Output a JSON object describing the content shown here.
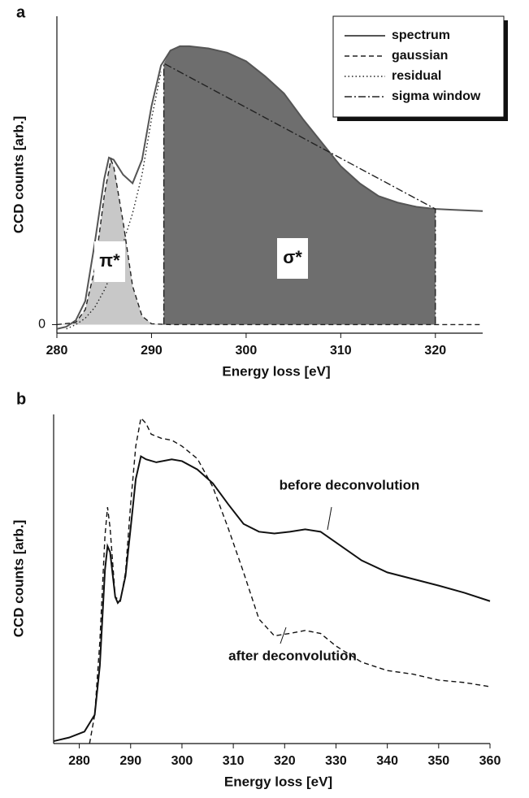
{
  "chart_data": [
    {
      "type": "line",
      "panel_label": "a",
      "xlabel": "Energy loss [eV]",
      "ylabel": "CCD counts [arb.]",
      "xlim": [
        280,
        325
      ],
      "xticks": [
        280,
        290,
        300,
        310,
        320
      ],
      "ylim": [
        -0.2,
        7.2
      ],
      "yticks": [
        0
      ],
      "legend": "upper right",
      "annotations": [
        "π*",
        "σ*"
      ],
      "series": [
        {
          "name": "spectrum",
          "color": "#555555",
          "linestyle": "solid",
          "x": [
            280,
            281,
            282,
            283,
            284,
            285,
            285.5,
            286,
            287,
            288,
            289,
            290,
            291,
            292,
            293,
            294,
            296,
            298,
            300,
            302,
            304,
            306,
            308,
            310,
            312,
            314,
            316,
            318,
            320,
            322,
            325
          ],
          "values": [
            -0.1,
            -0.05,
            0.1,
            0.55,
            1.9,
            3.4,
            3.9,
            3.85,
            3.5,
            3.3,
            3.85,
            5.1,
            6.05,
            6.4,
            6.5,
            6.5,
            6.45,
            6.35,
            6.15,
            5.8,
            5.4,
            4.8,
            4.25,
            3.7,
            3.3,
            3.0,
            2.85,
            2.75,
            2.7,
            2.68,
            2.65
          ]
        },
        {
          "name": "gaussian",
          "color": "#222222",
          "linestyle": "dashed",
          "fill": "#c8c8c8",
          "x": [
            280,
            282,
            283,
            284,
            285,
            285.7,
            286,
            287,
            288,
            289,
            290,
            292,
            325
          ],
          "values": [
            0,
            0.05,
            0.35,
            1.3,
            3.0,
            3.85,
            3.7,
            2.4,
            0.9,
            0.2,
            0.02,
            0,
            0
          ]
        },
        {
          "name": "residual",
          "color": "#222222",
          "linestyle": "dotted",
          "x": [
            281,
            282,
            283,
            284,
            285,
            286,
            287,
            288,
            289,
            290,
            291
          ],
          "values": [
            -0.1,
            0,
            0.15,
            0.4,
            0.8,
            1.3,
            1.9,
            2.6,
            3.5,
            4.8,
            5.9
          ]
        },
        {
          "name": "sigma window",
          "color": "#222222",
          "linestyle": "dashdot",
          "fill": "#6e6e6e",
          "x": [
            291.3,
            291.3,
            320,
            320
          ],
          "values": [
            0,
            6.1,
            2.7,
            0
          ]
        }
      ]
    },
    {
      "type": "line",
      "panel_label": "b",
      "xlabel": "Energy loss [eV]",
      "ylabel": "CCD counts [arb.]",
      "xlim": [
        275,
        360
      ],
      "xticks": [
        280,
        290,
        300,
        310,
        320,
        330,
        340,
        350,
        360
      ],
      "ylim": [
        0,
        5.5
      ],
      "annotations": [
        "before deconvolution",
        "after deconvolution"
      ],
      "series": [
        {
          "name": "before deconvolution",
          "color": "#111111",
          "linestyle": "solid",
          "x": [
            275,
            278,
            281,
            283,
            284,
            285,
            285.5,
            286,
            287,
            287.5,
            288,
            289,
            290,
            291,
            292,
            293,
            295,
            298,
            300,
            303,
            306,
            309,
            312,
            315,
            318,
            321,
            324,
            327,
            330,
            335,
            340,
            345,
            350,
            355,
            360
          ],
          "values": [
            0.04,
            0.1,
            0.2,
            0.48,
            1.3,
            2.9,
            3.3,
            3.2,
            2.45,
            2.35,
            2.4,
            2.8,
            3.6,
            4.42,
            4.8,
            4.75,
            4.7,
            4.75,
            4.72,
            4.58,
            4.35,
            4.0,
            3.67,
            3.54,
            3.51,
            3.54,
            3.58,
            3.54,
            3.36,
            3.06,
            2.86,
            2.75,
            2.64,
            2.52,
            2.38
          ]
        },
        {
          "name": "after deconvolution",
          "color": "#111111",
          "linestyle": "dashed",
          "x": [
            282,
            283,
            284,
            285,
            285.5,
            286,
            287,
            288,
            289,
            290,
            291,
            292,
            293,
            294,
            296,
            298,
            300,
            303,
            306,
            309,
            312,
            315,
            318,
            321,
            324,
            327,
            330,
            335,
            340,
            345,
            350,
            355,
            360
          ],
          "values": [
            0,
            0.48,
            1.7,
            3.47,
            3.95,
            3.6,
            2.45,
            2.38,
            2.86,
            4.0,
            4.97,
            5.44,
            5.35,
            5.17,
            5.1,
            5.07,
            4.97,
            4.76,
            4.29,
            3.6,
            2.86,
            2.08,
            1.8,
            1.84,
            1.89,
            1.84,
            1.63,
            1.36,
            1.22,
            1.16,
            1.06,
            1.02,
            0.95
          ]
        }
      ]
    }
  ]
}
